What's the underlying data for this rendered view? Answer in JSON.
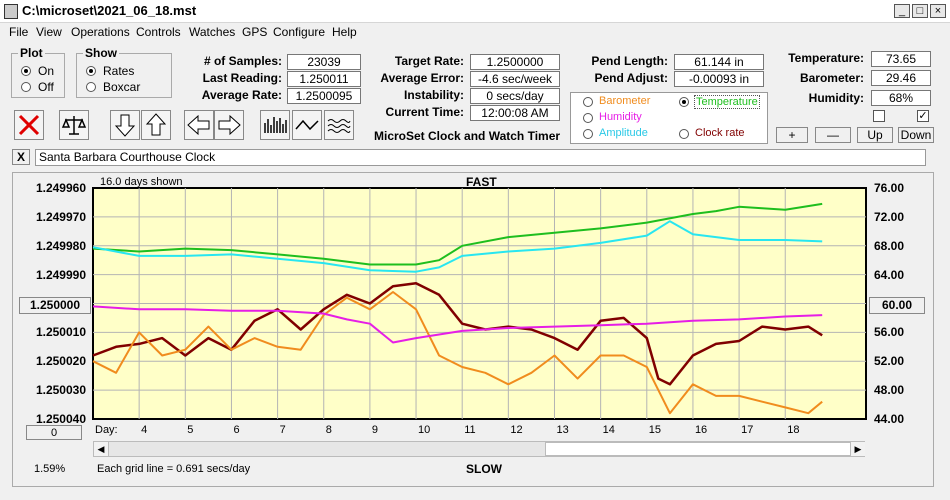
{
  "window": {
    "title": "C:\\microset\\2021_06_18.mst"
  },
  "menu": [
    "File",
    "View",
    "Operations",
    "Controls",
    "Watches",
    "GPS",
    "Configure",
    "Help"
  ],
  "plot_group": {
    "title": "Plot",
    "on": "On",
    "off": "Off"
  },
  "show_group": {
    "title": "Show",
    "rates": "Rates",
    "boxcar": "Boxcar"
  },
  "stats": {
    "samples_label": "# of Samples:",
    "samples": "23039",
    "last_label": "Last Reading:",
    "last": "1.250011",
    "avg_rate_label": "Average Rate:",
    "avg_rate": "1.2500095",
    "target_label": "Target Rate:",
    "target": "1.2500000",
    "avg_err_label": "Average Error:",
    "avg_err": "-4.6 sec/week",
    "instab_label": "Instability:",
    "instab": "0 secs/day",
    "time_label": "Current Time:",
    "time": "12:00:08 AM",
    "pend_len_label": "Pend Length:",
    "pend_len": "61.144 in",
    "pend_adj_label": "Pend Adjust:",
    "pend_adj": "-0.00093 in",
    "temp_label": "Temperature:",
    "temp": "73.65",
    "baro_label": "Barometer:",
    "baro": "29.46",
    "hum_label": "Humidity:",
    "hum": "68%"
  },
  "app_caption": "MicroSet Clock and Watch Timer",
  "sensor_legend": {
    "barometer": "Barometer",
    "temperature": "Temperature",
    "humidity": "Humidity",
    "amplitude": "Amplitude",
    "clock_rate": "Clock rate"
  },
  "small_buttons": {
    "plus": "+",
    "minus": "—",
    "up": "Up",
    "down": "Down"
  },
  "clock_name": "Santa Barbara Courthouse Clock",
  "close_x": "X",
  "chart": {
    "days_shown": "16.0 days shown",
    "fast": "FAST",
    "slow": "SLOW",
    "left_center_button": "1.250000",
    "right_center_button": "60.00",
    "zero_button": "0",
    "day_label": "Day:",
    "percent": "1.59%",
    "grid_note": "Each grid line = 0.691 secs/day"
  },
  "colors": {
    "plot_bg": "#ffffc8",
    "rate": "#800000",
    "barometer": "#f08c1e",
    "temperature": "#1ebe1e",
    "humidity": "#e61ee6",
    "amplitude": "#28e6f0"
  },
  "chart_data": {
    "type": "line",
    "x_ticks": [
      "4",
      "5",
      "6",
      "7",
      "8",
      "9",
      "10",
      "11",
      "12",
      "13",
      "14",
      "15",
      "16",
      "17",
      "18"
    ],
    "y_left_ticks": [
      "1.249960",
      "1.249970",
      "1.249980",
      "1.249990",
      "1.250000",
      "1.250010",
      "1.250020",
      "1.250030",
      "1.250040"
    ],
    "y_left_range": [
      1.24996,
      1.25004
    ],
    "y_right_ticks": [
      "76.00",
      "72.00",
      "68.00",
      "64.00",
      "60.00",
      "56.00",
      "52.00",
      "48.00",
      "44.00"
    ],
    "y_right_range": [
      44,
      76
    ],
    "series": [
      {
        "color": "#800000",
        "axis": "left",
        "x": [
          3,
          3.5,
          4,
          4.5,
          5,
          5.5,
          6,
          6.5,
          7,
          7.5,
          8,
          8.5,
          9,
          9.5,
          10,
          10.5,
          11,
          11.5,
          12,
          12.5,
          13,
          13.5,
          14,
          14.5,
          15,
          15.25,
          15.5,
          16,
          16.5,
          17,
          17.5,
          18,
          18.5,
          18.8
        ],
        "y": [
          1.250018,
          1.250015,
          1.250014,
          1.250012,
          1.250018,
          1.250012,
          1.250016,
          1.250006,
          1.250002,
          1.250009,
          1.250002,
          1.249997,
          1.25,
          1.249994,
          1.249993,
          1.249997,
          1.250007,
          1.250009,
          1.250008,
          1.250009,
          1.250012,
          1.250016,
          1.250006,
          1.250005,
          1.250012,
          1.250026,
          1.250028,
          1.250018,
          1.250014,
          1.250013,
          1.250008,
          1.250009,
          1.250008,
          1.250011
        ]
      },
      {
        "color": "#f08c1e",
        "axis": "left",
        "x": [
          3,
          3.5,
          4,
          4.5,
          5,
          5.5,
          6,
          6.5,
          7,
          7.5,
          8,
          8.5,
          9,
          9.5,
          10,
          10.5,
          11,
          11.5,
          12,
          12.5,
          13,
          13.5,
          14,
          14.5,
          15,
          15.5,
          16,
          16.5,
          17,
          17.5,
          18,
          18.5,
          18.8
        ],
        "y": [
          1.25002,
          1.250024,
          1.25001,
          1.250018,
          1.250016,
          1.250008,
          1.250016,
          1.250012,
          1.250015,
          1.250016,
          1.250004,
          1.249998,
          1.250002,
          1.249996,
          1.250002,
          1.250018,
          1.250022,
          1.250024,
          1.250028,
          1.250024,
          1.250018,
          1.250026,
          1.250018,
          1.250018,
          1.250022,
          1.250038,
          1.250028,
          1.250032,
          1.250032,
          1.250034,
          1.250036,
          1.250038,
          1.250034
        ]
      },
      {
        "color": "#1ebe1e",
        "axis": "right",
        "x": [
          3,
          4,
          5,
          6,
          7,
          8,
          9,
          10,
          10.5,
          11,
          12,
          13,
          14,
          15,
          16,
          16.5,
          17,
          17.5,
          18,
          18.8
        ],
        "y": [
          67.6,
          67.2,
          67.6,
          67.4,
          66.8,
          66.2,
          65.4,
          65.4,
          66,
          68,
          69.2,
          69.8,
          70.4,
          71.2,
          72.4,
          72.8,
          73.4,
          73.2,
          73,
          73.8
        ]
      },
      {
        "color": "#28e6f0",
        "axis": "right",
        "x": [
          3,
          4,
          5,
          6,
          7,
          8,
          9,
          10,
          10.5,
          11,
          12,
          13,
          14,
          15,
          15.5,
          16,
          17,
          18,
          18.8
        ],
        "y": [
          67.8,
          66.6,
          66.6,
          66.8,
          66.2,
          65.6,
          64.6,
          64.4,
          65,
          66.6,
          67.2,
          67.6,
          68.4,
          69.4,
          71.4,
          69.6,
          68.8,
          68.8,
          68.6
        ]
      },
      {
        "color": "#e61ee6",
        "axis": "right",
        "x": [
          3,
          4,
          5,
          6,
          7,
          8,
          8.5,
          9,
          9.5,
          10,
          11,
          12,
          13,
          14,
          15,
          16,
          17,
          18,
          18.8
        ],
        "y": [
          59.6,
          59.2,
          59.2,
          59,
          59,
          58.6,
          57.8,
          57.2,
          54.6,
          55.2,
          56.2,
          56.6,
          56.8,
          57,
          57.2,
          57.6,
          57.8,
          58.2,
          58.4
        ]
      }
    ]
  }
}
